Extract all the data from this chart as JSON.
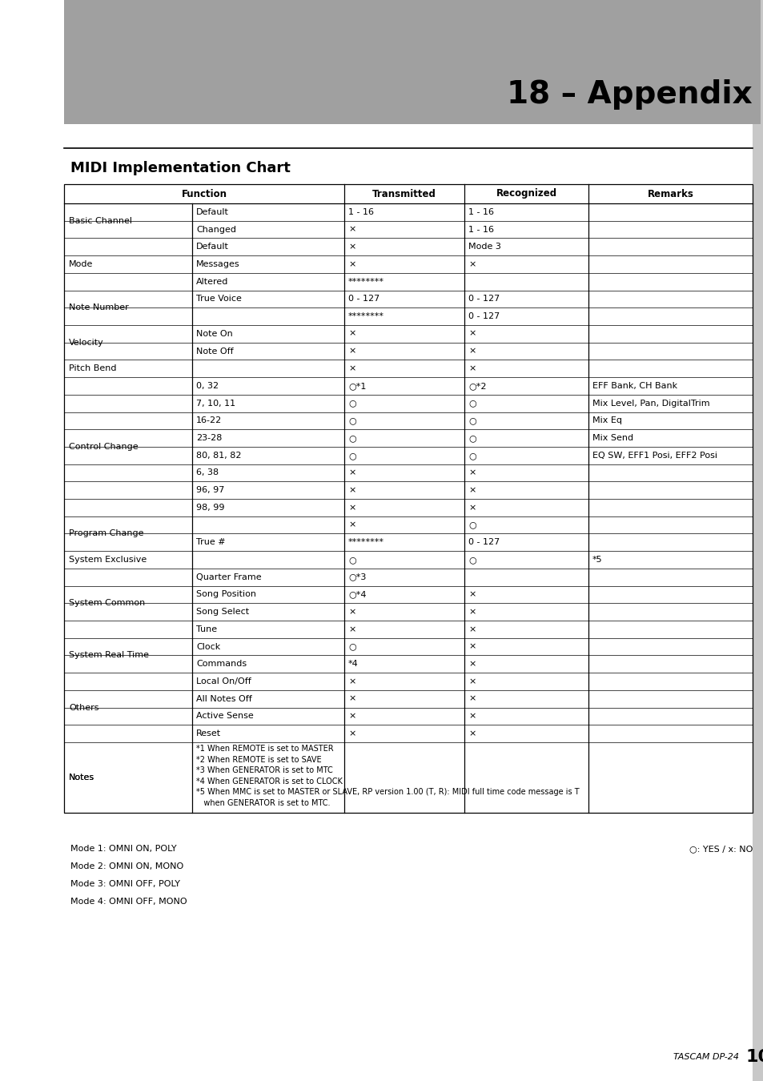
{
  "page_title": "18 – Appendix",
  "section_title": "MIDI Implementation Chart",
  "col_headers": [
    "Function",
    "Transmitted",
    "Recognized",
    "Remarks"
  ],
  "rows": [
    {
      "group": "Basic Channel",
      "sub": "Default",
      "trans": "1 - 16",
      "recog": "1 - 16",
      "remarks": ""
    },
    {
      "group": "Basic Channel",
      "sub": "Changed",
      "trans": "×",
      "recog": "1 - 16",
      "remarks": ""
    },
    {
      "group": "Mode",
      "sub": "Default",
      "trans": "×",
      "recog": "Mode 3",
      "remarks": ""
    },
    {
      "group": "Mode",
      "sub": "Messages",
      "trans": "×",
      "recog": "×",
      "remarks": ""
    },
    {
      "group": "Mode",
      "sub": "Altered",
      "trans": "********",
      "recog": "",
      "remarks": ""
    },
    {
      "group": "Note Number",
      "sub": "True Voice",
      "trans": "0 - 127",
      "recog": "0 - 127",
      "remarks": ""
    },
    {
      "group": "Note Number",
      "sub": "",
      "trans": "********",
      "recog": "0 - 127",
      "remarks": ""
    },
    {
      "group": "Velocity",
      "sub": "Note On",
      "trans": "×",
      "recog": "×",
      "remarks": ""
    },
    {
      "group": "Velocity",
      "sub": "Note Off",
      "trans": "×",
      "recog": "×",
      "remarks": ""
    },
    {
      "group": "Pitch Bend",
      "sub": "",
      "trans": "×",
      "recog": "×",
      "remarks": ""
    },
    {
      "group": "Control Change",
      "sub": "0, 32",
      "trans": "○*1",
      "recog": "○*2",
      "remarks": "EFF Bank, CH Bank"
    },
    {
      "group": "Control Change",
      "sub": "7, 10, 11",
      "trans": "○",
      "recog": "○",
      "remarks": "Mix Level, Pan, DigitalTrim"
    },
    {
      "group": "Control Change",
      "sub": "16-22",
      "trans": "○",
      "recog": "○",
      "remarks": "Mix Eq"
    },
    {
      "group": "Control Change",
      "sub": "23-28",
      "trans": "○",
      "recog": "○",
      "remarks": "Mix Send"
    },
    {
      "group": "Control Change",
      "sub": "80, 81, 82",
      "trans": "○",
      "recog": "○",
      "remarks": "EQ SW, EFF1 Posi, EFF2 Posi"
    },
    {
      "group": "Control Change",
      "sub": "6, 38",
      "trans": "×",
      "recog": "×",
      "remarks": ""
    },
    {
      "group": "Control Change",
      "sub": "96, 97",
      "trans": "×",
      "recog": "×",
      "remarks": ""
    },
    {
      "group": "Control Change",
      "sub": "98, 99",
      "trans": "×",
      "recog": "×",
      "remarks": ""
    },
    {
      "group": "Program Change",
      "sub": "",
      "trans": "×",
      "recog": "○",
      "remarks": ""
    },
    {
      "group": "Program Change",
      "sub": "True #",
      "trans": "********",
      "recog": "0 - 127",
      "remarks": ""
    },
    {
      "group": "System Exclusive",
      "sub": "",
      "trans": "○",
      "recog": "○",
      "remarks": "*5"
    },
    {
      "group": "System Common",
      "sub": "Quarter Frame",
      "trans": "○*3",
      "recog": "",
      "remarks": ""
    },
    {
      "group": "System Common",
      "sub": "Song Position",
      "trans": "○*4",
      "recog": "×",
      "remarks": ""
    },
    {
      "group": "System Common",
      "sub": "Song Select",
      "trans": "×",
      "recog": "×",
      "remarks": ""
    },
    {
      "group": "System Common",
      "sub": "Tune",
      "trans": "×",
      "recog": "×",
      "remarks": ""
    },
    {
      "group": "System Real Time",
      "sub": "Clock",
      "trans": "○",
      "recog": "×",
      "remarks": ""
    },
    {
      "group": "System Real Time",
      "sub": "Commands",
      "trans": "*4",
      "recog": "×",
      "remarks": ""
    },
    {
      "group": "Others",
      "sub": "Local On/Off",
      "trans": "×",
      "recog": "×",
      "remarks": ""
    },
    {
      "group": "Others",
      "sub": "All Notes Off",
      "trans": "×",
      "recog": "×",
      "remarks": ""
    },
    {
      "group": "Others",
      "sub": "Active Sense",
      "trans": "×",
      "recog": "×",
      "remarks": ""
    },
    {
      "group": "Others",
      "sub": "Reset",
      "trans": "×",
      "recog": "×",
      "remarks": ""
    },
    {
      "group": "Notes",
      "sub": "",
      "trans": "",
      "recog": "",
      "remarks": ""
    }
  ],
  "notes_lines": [
    "*1 When REMOTE is set to MASTER",
    "*2 When REMOTE is set to SAVE",
    "*3 When GENERATOR is set to MTC",
    "*4 When GENERATOR is set to CLOCK",
    "*5 When MMC is set to MASTER or SLAVE, RP version 1.00 (T, R): MIDI full time code message is T",
    "   when GENERATOR is set to MTC."
  ],
  "footer_modes": [
    "Mode 1: OMNI ON, POLY",
    "Mode 2: OMNI ON, MONO",
    "Mode 3: OMNI OFF, POLY",
    "Mode 4: OMNI OFF, MONO"
  ],
  "footer_legend": "○: YES / x: NO",
  "gray_header_color": "#a0a0a0",
  "sidebar_color": "#c8c8c8"
}
